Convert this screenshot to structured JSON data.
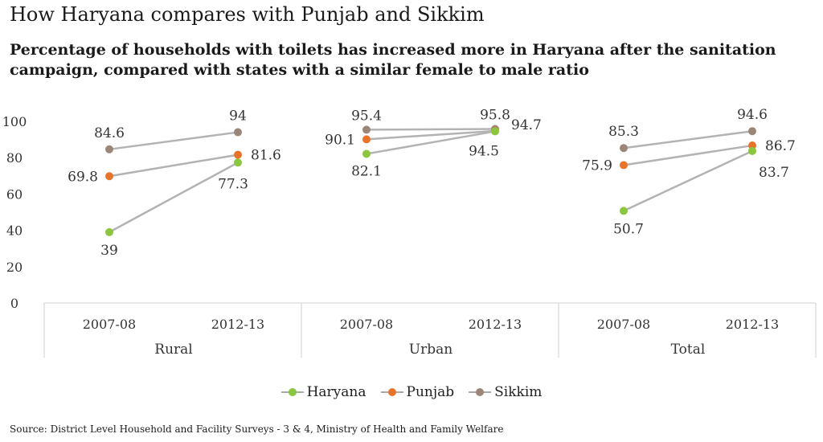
{
  "title": "How Haryana compares with Punjab and Sikkim",
  "subtitle": "Percentage of households with toilets has increased more in Haryana after the sanitation campaign, compared with states with a similar female to male ratio",
  "source": "Source: District Level Household and Facility Surveys - 3 & 4, Ministry of Health and Family Welfare",
  "colors": {
    "Haryana": "#8cc63f",
    "Punjab": "#e8742c",
    "Sikkim": "#9a8779",
    "line": "#b3b3b3"
  },
  "chart_data": {
    "type": "line",
    "ylim": [
      0,
      100
    ],
    "yticks": [
      "0",
      "20",
      "40",
      "60",
      "80",
      "100"
    ],
    "ytick_values": [
      0,
      20,
      40,
      60,
      80,
      100
    ],
    "grid": false,
    "legend_position": "bottom",
    "groups": [
      {
        "name": "Rural",
        "categories": [
          "2007-08",
          "2012-13"
        ]
      },
      {
        "name": "Urban",
        "categories": [
          "2007-08",
          "2012-13"
        ]
      },
      {
        "name": "Total",
        "categories": [
          "2007-08",
          "2012-13"
        ]
      }
    ],
    "series": [
      {
        "name": "Haryana",
        "values": [
          [
            39,
            77.3
          ],
          [
            82.1,
            94.5
          ],
          [
            50.7,
            83.7
          ]
        ],
        "labels": [
          [
            "39",
            "77.3"
          ],
          [
            "82.1",
            "94.5"
          ],
          [
            "50.7",
            "83.7"
          ]
        ]
      },
      {
        "name": "Punjab",
        "values": [
          [
            69.8,
            81.6
          ],
          [
            90.1,
            94.7
          ],
          [
            75.9,
            86.7
          ]
        ],
        "labels": [
          [
            "69.8",
            "81.6"
          ],
          [
            "90.1",
            "94.7"
          ],
          [
            "75.9",
            "86.7"
          ]
        ]
      },
      {
        "name": "Sikkim",
        "values": [
          [
            84.6,
            94
          ],
          [
            95.4,
            95.8
          ],
          [
            85.3,
            94.6
          ]
        ],
        "labels": [
          [
            "84.6",
            "94"
          ],
          [
            "95.4",
            "95.8"
          ],
          [
            "85.3",
            "94.6"
          ]
        ]
      }
    ]
  }
}
